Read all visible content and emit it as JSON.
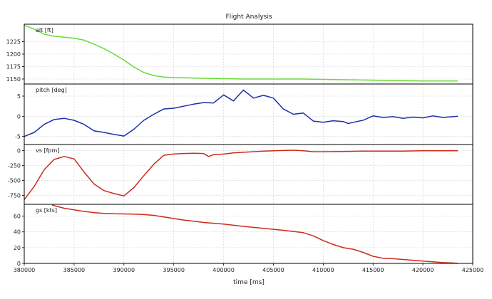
{
  "chart_data": {
    "type": "line",
    "title": "Flight Analysis",
    "xlabel": "time [ms]",
    "xlim": [
      380000,
      425000
    ],
    "xticks": [
      380000,
      385000,
      390000,
      395000,
      400000,
      405000,
      410000,
      415000,
      420000,
      425000
    ],
    "grid": true,
    "panels": [
      {
        "name": "alt",
        "ylabel": "alt [ft]",
        "color": "#66dd33",
        "ylim": [
          1140,
          1260
        ],
        "yticks": [
          1150,
          1175,
          1200,
          1225
        ],
        "x": [
          380000,
          381000,
          382000,
          383000,
          384000,
          385000,
          386000,
          387000,
          388000,
          389000,
          390000,
          391000,
          392000,
          393000,
          394000,
          395000,
          397000,
          399000,
          402000,
          405000,
          408000,
          411000,
          414000,
          417000,
          420000,
          423500
        ],
        "y": [
          1258,
          1250,
          1240,
          1236,
          1234,
          1232,
          1228,
          1220,
          1211,
          1200,
          1188,
          1174,
          1163,
          1157,
          1154,
          1153,
          1152,
          1151,
          1150,
          1150,
          1150,
          1149,
          1148,
          1147,
          1146,
          1146
        ]
      },
      {
        "name": "pitch",
        "ylabel": "pitch [deg]",
        "color": "#1a2fae",
        "ylim": [
          -7,
          8
        ],
        "yticks": [
          -5,
          0,
          5
        ],
        "x": [
          380000,
          381000,
          382000,
          383000,
          384000,
          385000,
          386000,
          387000,
          388000,
          389000,
          390000,
          391000,
          392000,
          393000,
          394000,
          395000,
          396000,
          397000,
          398000,
          399000,
          400000,
          401000,
          401500,
          402000,
          402500,
          403000,
          404000,
          405000,
          406000,
          407000,
          408000,
          409000,
          410000,
          411000,
          412000,
          412500,
          413000,
          414000,
          415000,
          416000,
          417000,
          418000,
          419000,
          420000,
          421000,
          422000,
          423000,
          423500
        ],
        "y": [
          -5,
          -4,
          -2,
          -0.8,
          -0.5,
          -1,
          -2,
          -3.6,
          -4,
          -4.5,
          -4.9,
          -3.2,
          -1,
          0.5,
          1.8,
          2,
          2.5,
          3,
          3.4,
          3.3,
          5.3,
          3.8,
          5.2,
          6.5,
          5.5,
          4.5,
          5.2,
          4.5,
          1.8,
          0.5,
          0.8,
          -1.2,
          -1.5,
          -1.1,
          -1.3,
          -1.8,
          -1.5,
          -1,
          0.1,
          -0.3,
          -0.1,
          -0.5,
          -0.2,
          -0.4,
          0.1,
          -0.3,
          -0.1,
          0
        ]
      },
      {
        "name": "vs",
        "ylabel": "vs [fpm]",
        "color": "#cc2b1c",
        "ylim": [
          -900,
          100
        ],
        "yticks": [
          -750,
          -500,
          -250,
          0
        ],
        "x": [
          380000,
          381000,
          382000,
          383000,
          384000,
          385000,
          386000,
          387000,
          388000,
          389000,
          390000,
          391000,
          392000,
          393000,
          394000,
          395000,
          396000,
          397000,
          398000,
          398500,
          399000,
          399500,
          400000,
          401000,
          402000,
          403000,
          404000,
          405000,
          406000,
          407000,
          408000,
          409000,
          410000,
          412000,
          414000,
          416000,
          418000,
          420000,
          422000,
          423500
        ],
        "y": [
          -820,
          -600,
          -320,
          -150,
          -100,
          -140,
          -360,
          -560,
          -670,
          -720,
          -760,
          -620,
          -420,
          -230,
          -80,
          -60,
          -50,
          -45,
          -50,
          -100,
          -70,
          -65,
          -60,
          -40,
          -30,
          -20,
          -10,
          -5,
          0,
          5,
          -5,
          -20,
          -20,
          -15,
          -10,
          -10,
          -10,
          -5,
          -5,
          -5
        ]
      },
      {
        "name": "gs",
        "ylabel": "gs [kts]",
        "color": "#cc2b1c",
        "ylim": [
          0,
          75
        ],
        "yticks": [
          0,
          20,
          40,
          60
        ],
        "x": [
          382800,
          384000,
          385000,
          386000,
          387000,
          388000,
          389000,
          390000,
          391000,
          392000,
          393000,
          394000,
          395000,
          396000,
          397000,
          398000,
          399000,
          400000,
          402000,
          404000,
          406000,
          408000,
          409000,
          410000,
          411000,
          412000,
          413000,
          414000,
          415000,
          416000,
          417000,
          418000,
          419000,
          420000,
          421000,
          422000,
          423000,
          423500
        ],
        "y": [
          74,
          70,
          68,
          66,
          64.5,
          63.5,
          63,
          62.8,
          62.5,
          62,
          61,
          59,
          57,
          55,
          53.5,
          52,
          51,
          50,
          47,
          44.5,
          42,
          39,
          35,
          29,
          24,
          20,
          18,
          14,
          9,
          6.5,
          6,
          5,
          4,
          3,
          2,
          1,
          0.5,
          0
        ]
      }
    ]
  }
}
